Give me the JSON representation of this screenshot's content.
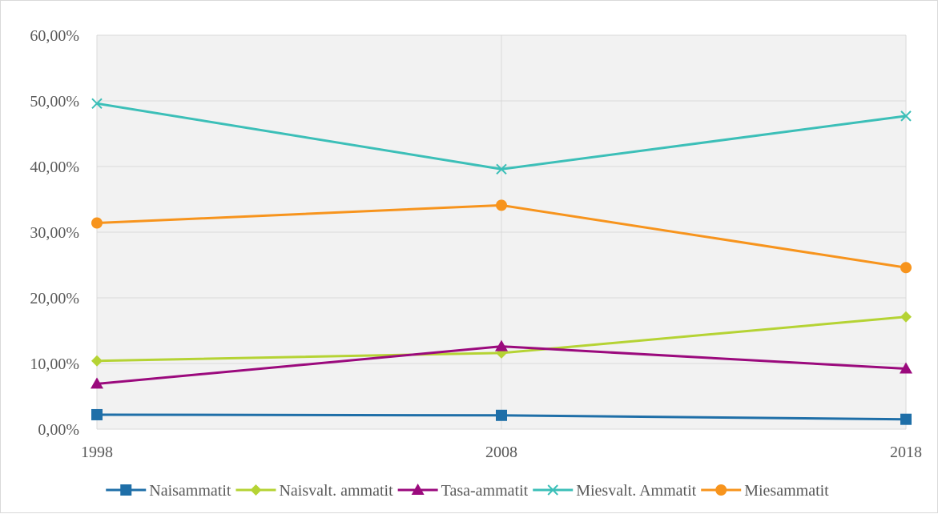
{
  "chart_data": {
    "type": "line",
    "title": "",
    "xlabel": "",
    "ylabel": "",
    "x": [
      "1998",
      "2008",
      "2018"
    ],
    "ylim": [
      0,
      60
    ],
    "y_ticks": [
      "0,00%",
      "10,00%",
      "20,00%",
      "30,00%",
      "40,00%",
      "50,00%",
      "60,00%"
    ],
    "grid": true,
    "legend_position": "bottom",
    "series": [
      {
        "name": "Naisammatit",
        "values": [
          2.2,
          2.1,
          1.5
        ],
        "color": "#1f6fa8",
        "marker": "square"
      },
      {
        "name": "Naisvalt. ammatit",
        "values": [
          10.4,
          11.6,
          17.1
        ],
        "color": "#b5d334",
        "marker": "diamond"
      },
      {
        "name": "Tasa-ammatit",
        "values": [
          6.9,
          12.6,
          9.2
        ],
        "color": "#9b0a7d",
        "marker": "triangle"
      },
      {
        "name": "Miesvalt. Ammatit",
        "values": [
          49.6,
          39.6,
          47.7
        ],
        "color": "#3cbfb8",
        "marker": "x"
      },
      {
        "name": "Miesammatit",
        "values": [
          31.4,
          34.1,
          24.6
        ],
        "color": "#f7941d",
        "marker": "circle"
      }
    ]
  }
}
